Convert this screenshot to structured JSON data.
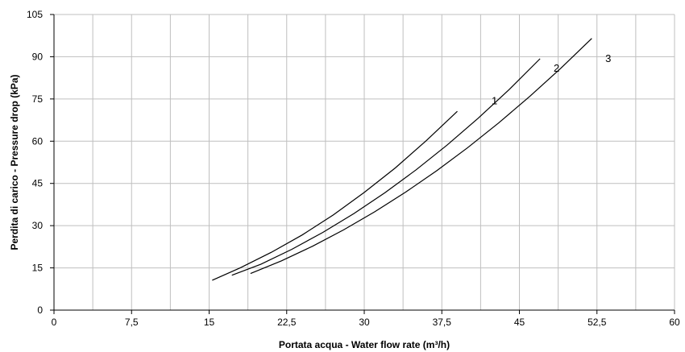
{
  "chart_data": {
    "type": "line",
    "title": "",
    "xlabel": "Portata acqua - Water flow rate (m³/h)",
    "ylabel": "Perdita di carico - Pressure drop (kPa)",
    "xlim": [
      0,
      60
    ],
    "ylim": [
      0,
      105
    ],
    "x_ticks": [
      0,
      7.5,
      15,
      22.5,
      30,
      37.5,
      45,
      52.5,
      60
    ],
    "x_tick_labels": [
      "0",
      "7,5",
      "15",
      "22,5",
      "30",
      "37,5",
      "45",
      "52,5",
      "60"
    ],
    "y_ticks": [
      0,
      15,
      30,
      45,
      60,
      75,
      90,
      105
    ],
    "y_tick_labels": [
      "0",
      "15",
      "30",
      "45",
      "60",
      "75",
      "90",
      "105"
    ],
    "grid": true,
    "minor_x_step": 3.75,
    "legend": "none",
    "series": [
      {
        "name": "1",
        "x": [
          15.3,
          18,
          21,
          24,
          27,
          30,
          33,
          36,
          39,
          42
        ],
        "y": [
          10.6,
          15.0,
          20.5,
          26.7,
          33.8,
          41.8,
          50.5,
          60.2,
          70.6,
          72.0
        ]
      },
      {
        "name": "2",
        "x": [
          17.2,
          20,
          23,
          26,
          29,
          32,
          35,
          38,
          41,
          44,
          47,
          48
        ],
        "y": [
          12.4,
          16.3,
          21.6,
          27.6,
          34.3,
          41.7,
          49.8,
          58.6,
          68.1,
          78.3,
          89.3,
          83.5
        ]
      },
      {
        "name": "3",
        "x": [
          19.0,
          22,
          25,
          28,
          31,
          34,
          37,
          40,
          43,
          46,
          49,
          52,
          53
        ],
        "y": [
          13.0,
          17.5,
          22.7,
          28.5,
          34.9,
          41.9,
          49.5,
          57.7,
          66.5,
          75.9,
          85.9,
          96.5,
          87.0
        ]
      }
    ],
    "line_color": "#000000",
    "grid_color": "#bfbfbf"
  }
}
